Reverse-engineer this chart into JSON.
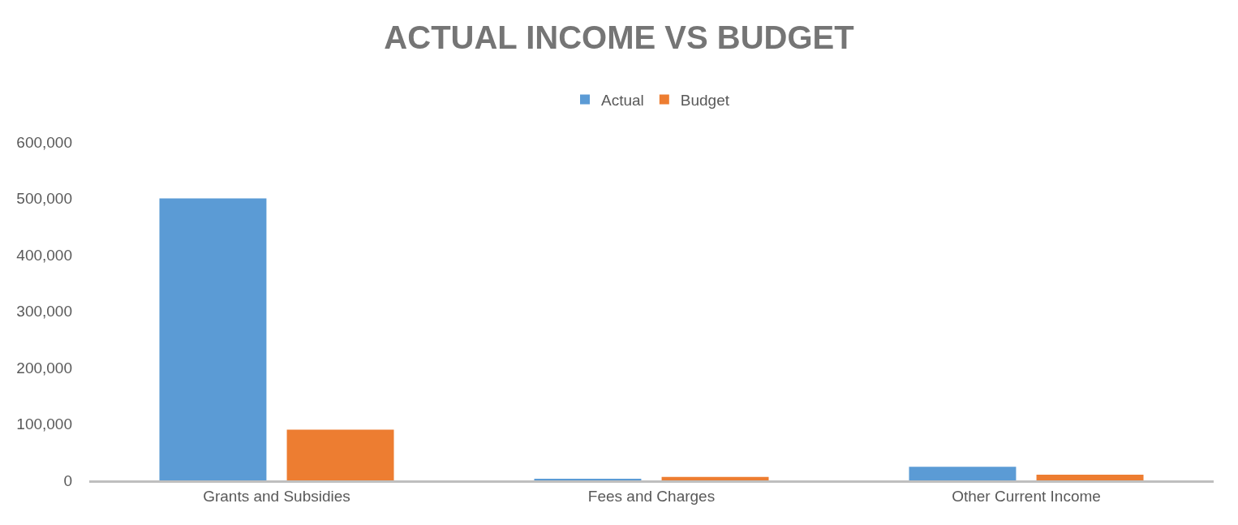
{
  "chart_data": {
    "type": "bar",
    "title": "ACTUAL INCOME VS BUDGET",
    "categories": [
      "Grants and Subsidies",
      "Fees and Charges",
      "Other Current Income"
    ],
    "series": [
      {
        "name": "Actual",
        "color": "#5b9bd5",
        "values": [
          500000,
          3000,
          24000
        ]
      },
      {
        "name": "Budget",
        "color": "#ed7d31",
        "values": [
          90000,
          6000,
          10000
        ]
      }
    ],
    "ylim": [
      0,
      600000
    ],
    "yticks": [
      {
        "value": 0,
        "label": "0"
      },
      {
        "value": 100000,
        "label": "100,000"
      },
      {
        "value": 200000,
        "label": "200,000"
      },
      {
        "value": 300000,
        "label": "300,000"
      },
      {
        "value": 400000,
        "label": "400,000"
      },
      {
        "value": 500000,
        "label": "500,000"
      },
      {
        "value": 600000,
        "label": "600,000"
      }
    ],
    "grid": false,
    "legend": "top"
  }
}
